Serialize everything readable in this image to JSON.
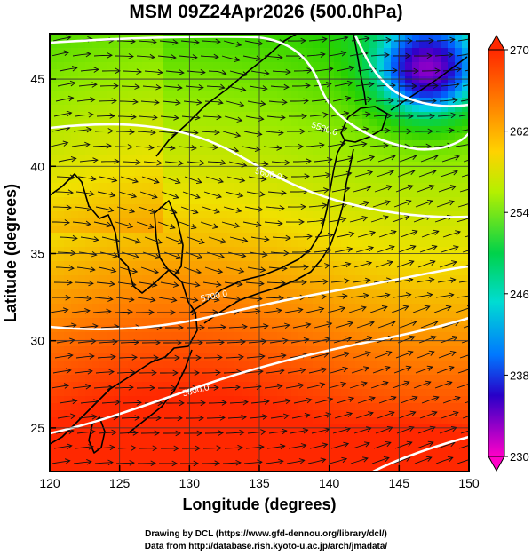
{
  "title": "MSM 09Z24Apr2026 (500.0hPa)",
  "x_axis": {
    "label": "Longitude (degrees)",
    "range": [
      120,
      150
    ],
    "ticks": [
      "120",
      "125",
      "130",
      "135",
      "140",
      "145",
      "150"
    ],
    "tick_values": [
      120,
      125,
      130,
      135,
      140,
      145,
      150
    ]
  },
  "y_axis": {
    "label": "Latitude  (degrees)",
    "range": [
      22.5,
      47.6
    ],
    "ticks": [
      "25",
      "30",
      "35",
      "40",
      "45"
    ],
    "tick_values": [
      25,
      30,
      35,
      40,
      45
    ]
  },
  "colorbar": {
    "range": [
      230,
      270
    ],
    "labels": [
      "270",
      "262",
      "254",
      "246",
      "238",
      "230"
    ],
    "label_values": [
      270,
      262,
      254,
      246,
      238,
      230
    ]
  },
  "contours": [
    {
      "label": "5500.0",
      "lon": 139.6,
      "lat": 42.0
    },
    {
      "label": "5600.0",
      "lon": 135.6,
      "lat": 39.4
    },
    {
      "label": "5700.0",
      "lon": 131.8,
      "lat": 32.4
    },
    {
      "label": "5800.0",
      "lon": 130.5,
      "lat": 27.0
    }
  ],
  "credits": {
    "line1": "Drawing by DCL (https://www.gfd-dennou.org/library/dcl/)",
    "line2": "Data from http://database.rish.kyoto-u.ac.jp/arch/jmadata/"
  },
  "colors": {
    "colorbar_stops": [
      "#ff00c8",
      "#0000c8",
      "#00c8ff",
      "#00dc00",
      "#b4f000",
      "#ffb400",
      "#ff2800"
    ],
    "field_low": "#2040e0",
    "field_high": "#ff4000"
  }
}
